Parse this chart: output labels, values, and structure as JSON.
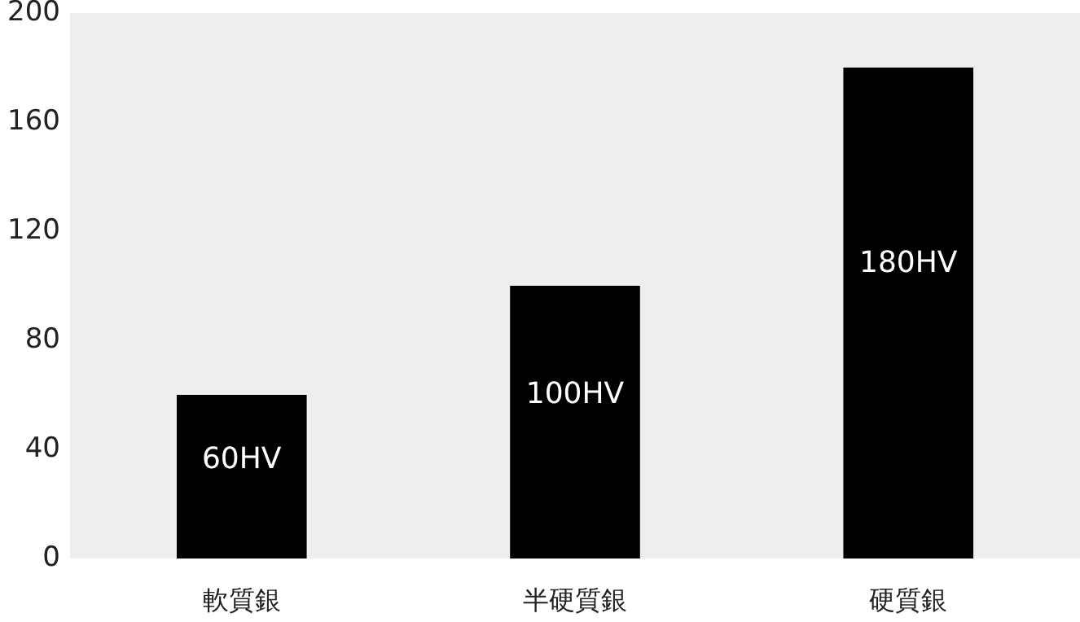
{
  "chart_data": {
    "type": "bar",
    "categories": [
      "軟質銀",
      "半硬質銀",
      "硬質銀"
    ],
    "values": [
      60,
      100,
      180
    ],
    "color": "#000000",
    "value_labels": [
      "60HV",
      "100HV",
      "180HV"
    ],
    "ylim": [
      0,
      200
    ],
    "yticks": [
      0,
      40,
      80,
      120,
      160,
      200
    ],
    "grid": false
  }
}
